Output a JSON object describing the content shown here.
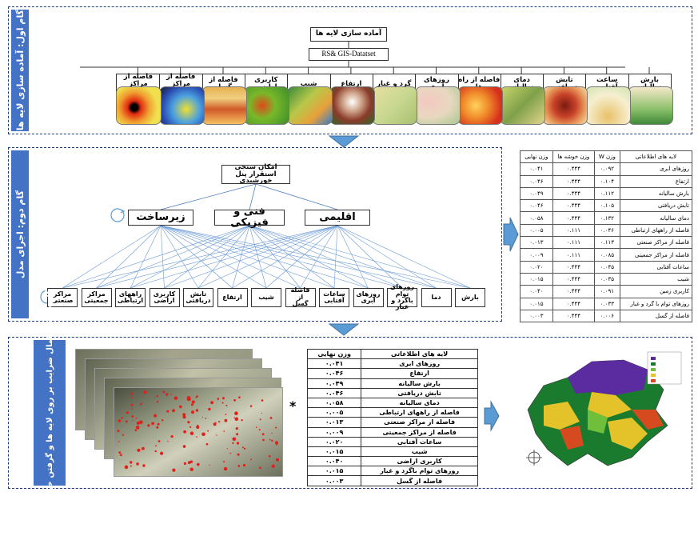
{
  "steps": {
    "step1": "گام اول: آماده سازی لایه ها",
    "step2": "گام دوم: اجرای مدل",
    "step3": "گام سوم: اعمال ضرایب بر روی لایه ها و گرفتن خروجی نهایی"
  },
  "top": {
    "title": "آماده سازی لایه ها",
    "source": "RS& GIS-Datatset",
    "layers": [
      "بارش سالیانه",
      "ساعت آفتابی",
      "تابش دریافتی",
      "دمای سالیانه",
      "فاصله از راه ها",
      "روزهای ابری",
      "گرد و غبار",
      "ارتفاع",
      "شیب",
      "کاربری اراضی",
      "فاصله از گسل",
      "فاصله از مراکز جمعیتی",
      "فاصله از مراکز صنعتی"
    ]
  },
  "model": {
    "goal": "امکان سنجی استقرار پنل خورشیدی",
    "criteria": [
      "اقلیمی",
      "فنی و فیزیکی",
      "زیرساخت"
    ],
    "subcriteria": [
      "بارش",
      "دما",
      "روزهای توام باگرد و غبار",
      "روزهای ابری",
      "ساعات آفتابی",
      "فاصله از گسل",
      "شیب",
      "ارتفاع",
      "تابش دریافتی",
      "کاربری اراضی",
      "راههای ارتباطی",
      "مراکز جمعیتی",
      "مراکز صنعتی"
    ]
  },
  "weights_table": {
    "headers": [
      "لایه های اطلاعاتی",
      "وزن W",
      "وزن خوشه ها",
      "وزن نهایی"
    ],
    "rows": [
      [
        "روزهای ابری",
        "۰.۰۹۲",
        "۰.۴۴۴",
        "۰.۰۴۱"
      ],
      [
        "ارتفاع",
        "۰.۱۰۴",
        "۰.۴۴۴",
        "۰.۰۴۶"
      ],
      [
        "بارش سالیانه",
        "۰.۱۱۲",
        "۰.۴۴۴",
        "۰.۰۴۹"
      ],
      [
        "تابش دریافتی",
        "۰.۱۰۵",
        "۰.۴۴۴",
        "۰.۰۴۶"
      ],
      [
        "دمای سالیانه",
        "۰.۱۳۲",
        "۰.۴۴۴",
        "۰.۰۵۸"
      ],
      [
        "فاصله از راههای ارتباطی",
        "۰.۰۴۶",
        "۰.۱۱۱",
        "۰.۰۰۵"
      ],
      [
        "فاصله از مراکز صنعتی",
        "۰.۱۱۳",
        "۰.۱۱۱",
        "۰.۰۱۳"
      ],
      [
        "فاصله از مراکز جمعیتی",
        "۰.۰۸۵",
        "۰.۱۱۱",
        "۰.۰۰۹"
      ],
      [
        "ساعات آفتابی",
        "۰.۰۴۵",
        "۰.۴۴۴",
        "۰.۰۲۰"
      ],
      [
        "شیب",
        "۰.۰۳۵",
        "۰.۴۴۴",
        "۰.۰۱۵"
      ],
      [
        "کاربری زمین",
        "۰.۰۹۱",
        "۰.۴۴۴",
        "۰.۰۴۰"
      ],
      [
        "روزهای توام با گرد و غبار",
        "۰.۰۳۳",
        "۰.۴۴۴",
        "۰.۰۱۵"
      ],
      [
        "فاصله از گسل",
        "۰.۰۰۶",
        "۰.۴۴۴",
        "۰.۰۰۳"
      ]
    ]
  },
  "final_table": {
    "headers": [
      "لایه های اطلاعاتی",
      "وزن نهایی"
    ],
    "rows": [
      [
        "روزهای ابری",
        "۰.۰۴۱"
      ],
      [
        "ارتفاع",
        "۰.۰۴۶"
      ],
      [
        "بارش سالیانه",
        "۰.۰۴۹"
      ],
      [
        "تابش دریافتی",
        "۰.۰۴۶"
      ],
      [
        "دمای سالیانه",
        "۰.۰۵۸"
      ],
      [
        "فاصله از راههای ارتباطی",
        "۰.۰۰۵"
      ],
      [
        "فاصله از مراکز صنعتی",
        "۰.۰۱۳"
      ],
      [
        "فاصله از مراکز جمعیتی",
        "۰.۰۰۹"
      ],
      [
        "ساعات آفتابی",
        "۰.۰۲۰"
      ],
      [
        "شیب",
        "۰.۰۱۵"
      ],
      [
        "کاربری اراضی",
        "۰.۰۴۰"
      ],
      [
        "روزهای توام باگرد و غبار",
        "۰.۰۱۵"
      ],
      [
        "فاصله از گسل",
        "۰.۰۰۳"
      ]
    ]
  },
  "multiply_symbol": "*",
  "colors": {
    "accent": "#4472c4",
    "border": "#1f3d7a",
    "arrow": "#5b9bd5"
  }
}
